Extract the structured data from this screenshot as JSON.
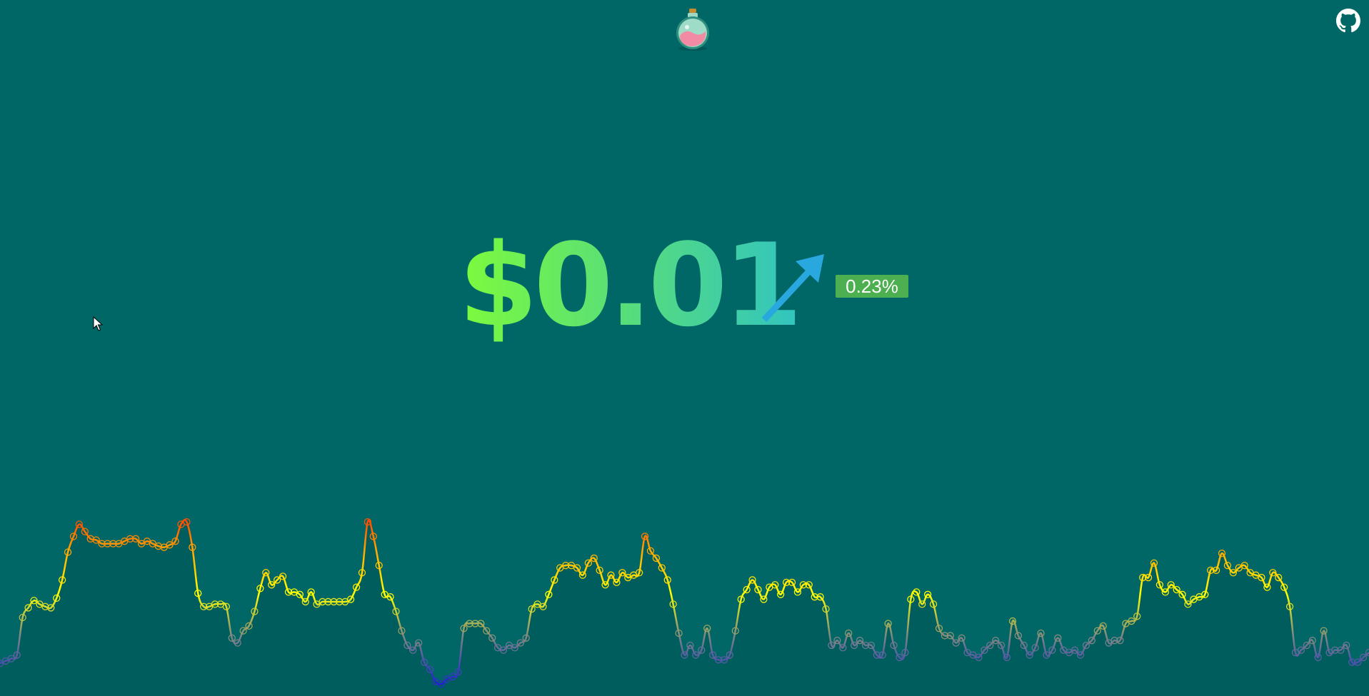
{
  "price": {
    "value": "$0.01",
    "direction": "up",
    "change_percent": "0.23%",
    "arrow_color": "#29a8e0",
    "badge_color": "#4caf50",
    "price_gradient": [
      "#7dfb3c",
      "#32c4c0"
    ]
  },
  "header": {
    "logo_icon": "potion-bottle-icon",
    "github_icon": "github-icon"
  },
  "colors": {
    "background": "#006666",
    "chart_fill": "#005d5d"
  },
  "chart_data": {
    "type": "line",
    "title": "",
    "xlabel": "",
    "ylabel": "",
    "grid": false,
    "legend": "none",
    "markers": "hollow-circles",
    "color_scale": [
      "#2020d0",
      "#707890",
      "#ffff00",
      "#ffa500",
      "#ff4500"
    ],
    "ylim": [
      0,
      100
    ],
    "values": [
      10.5,
      11.5,
      12.5,
      14,
      29.5,
      33.5,
      36.5,
      35,
      34,
      33.5,
      37.5,
      45,
      56.5,
      63,
      68,
      65,
      62,
      61.5,
      60,
      60,
      60,
      60,
      61,
      62,
      62,
      60,
      61,
      60,
      59,
      58.5,
      59.5,
      61,
      68,
      69,
      58.5,
      39.5,
      34,
      34,
      35,
      35,
      34,
      21,
      19,
      24,
      26,
      32,
      41.5,
      48,
      43,
      45,
      46.5,
      40,
      40,
      39,
      36,
      40,
      35,
      36,
      36,
      36,
      36,
      36,
      37,
      42,
      48,
      69,
      63,
      51,
      39,
      38,
      32,
      24,
      18,
      16,
      19,
      11,
      8,
      3,
      2,
      4,
      5,
      7,
      25,
      27,
      27,
      27,
      24,
      21,
      17,
      16,
      18,
      17,
      19,
      21,
      33,
      35,
      34,
      39,
      45,
      50,
      51,
      51,
      50,
      47,
      52,
      54,
      49,
      43,
      47,
      44,
      48,
      46,
      47,
      48,
      63,
      57,
      54,
      50,
      45,
      35,
      23,
      14,
      18,
      14,
      16,
      25,
      14,
      12,
      12,
      14,
      24,
      37,
      41,
      45,
      41,
      37,
      42,
      43,
      39,
      44,
      44,
      40,
      43,
      43,
      38,
      38,
      33,
      18,
      20,
      17,
      23,
      18,
      20,
      18,
      18,
      14,
      14,
      27,
      18,
      13,
      15,
      37,
      40,
      35,
      39,
      35,
      25,
      22,
      22,
      19,
      21,
      15,
      14,
      13,
      16,
      18,
      20,
      18,
      13,
      28,
      22,
      18,
      14,
      17,
      23,
      14,
      16,
      21,
      16,
      15,
      16,
      14,
      18,
      20,
      24,
      26,
      19,
      20,
      20,
      27,
      28,
      30,
      46,
      46,
      52,
      43,
      40,
      43,
      41,
      39,
      35,
      37,
      38,
      39,
      49,
      49,
      56,
      51,
      48,
      50,
      51,
      48,
      47,
      46,
      42,
      48,
      46,
      42,
      34,
      15,
      16,
      18,
      20,
      13,
      24,
      15,
      16,
      16,
      18,
      11,
      11,
      13,
      15
    ]
  }
}
